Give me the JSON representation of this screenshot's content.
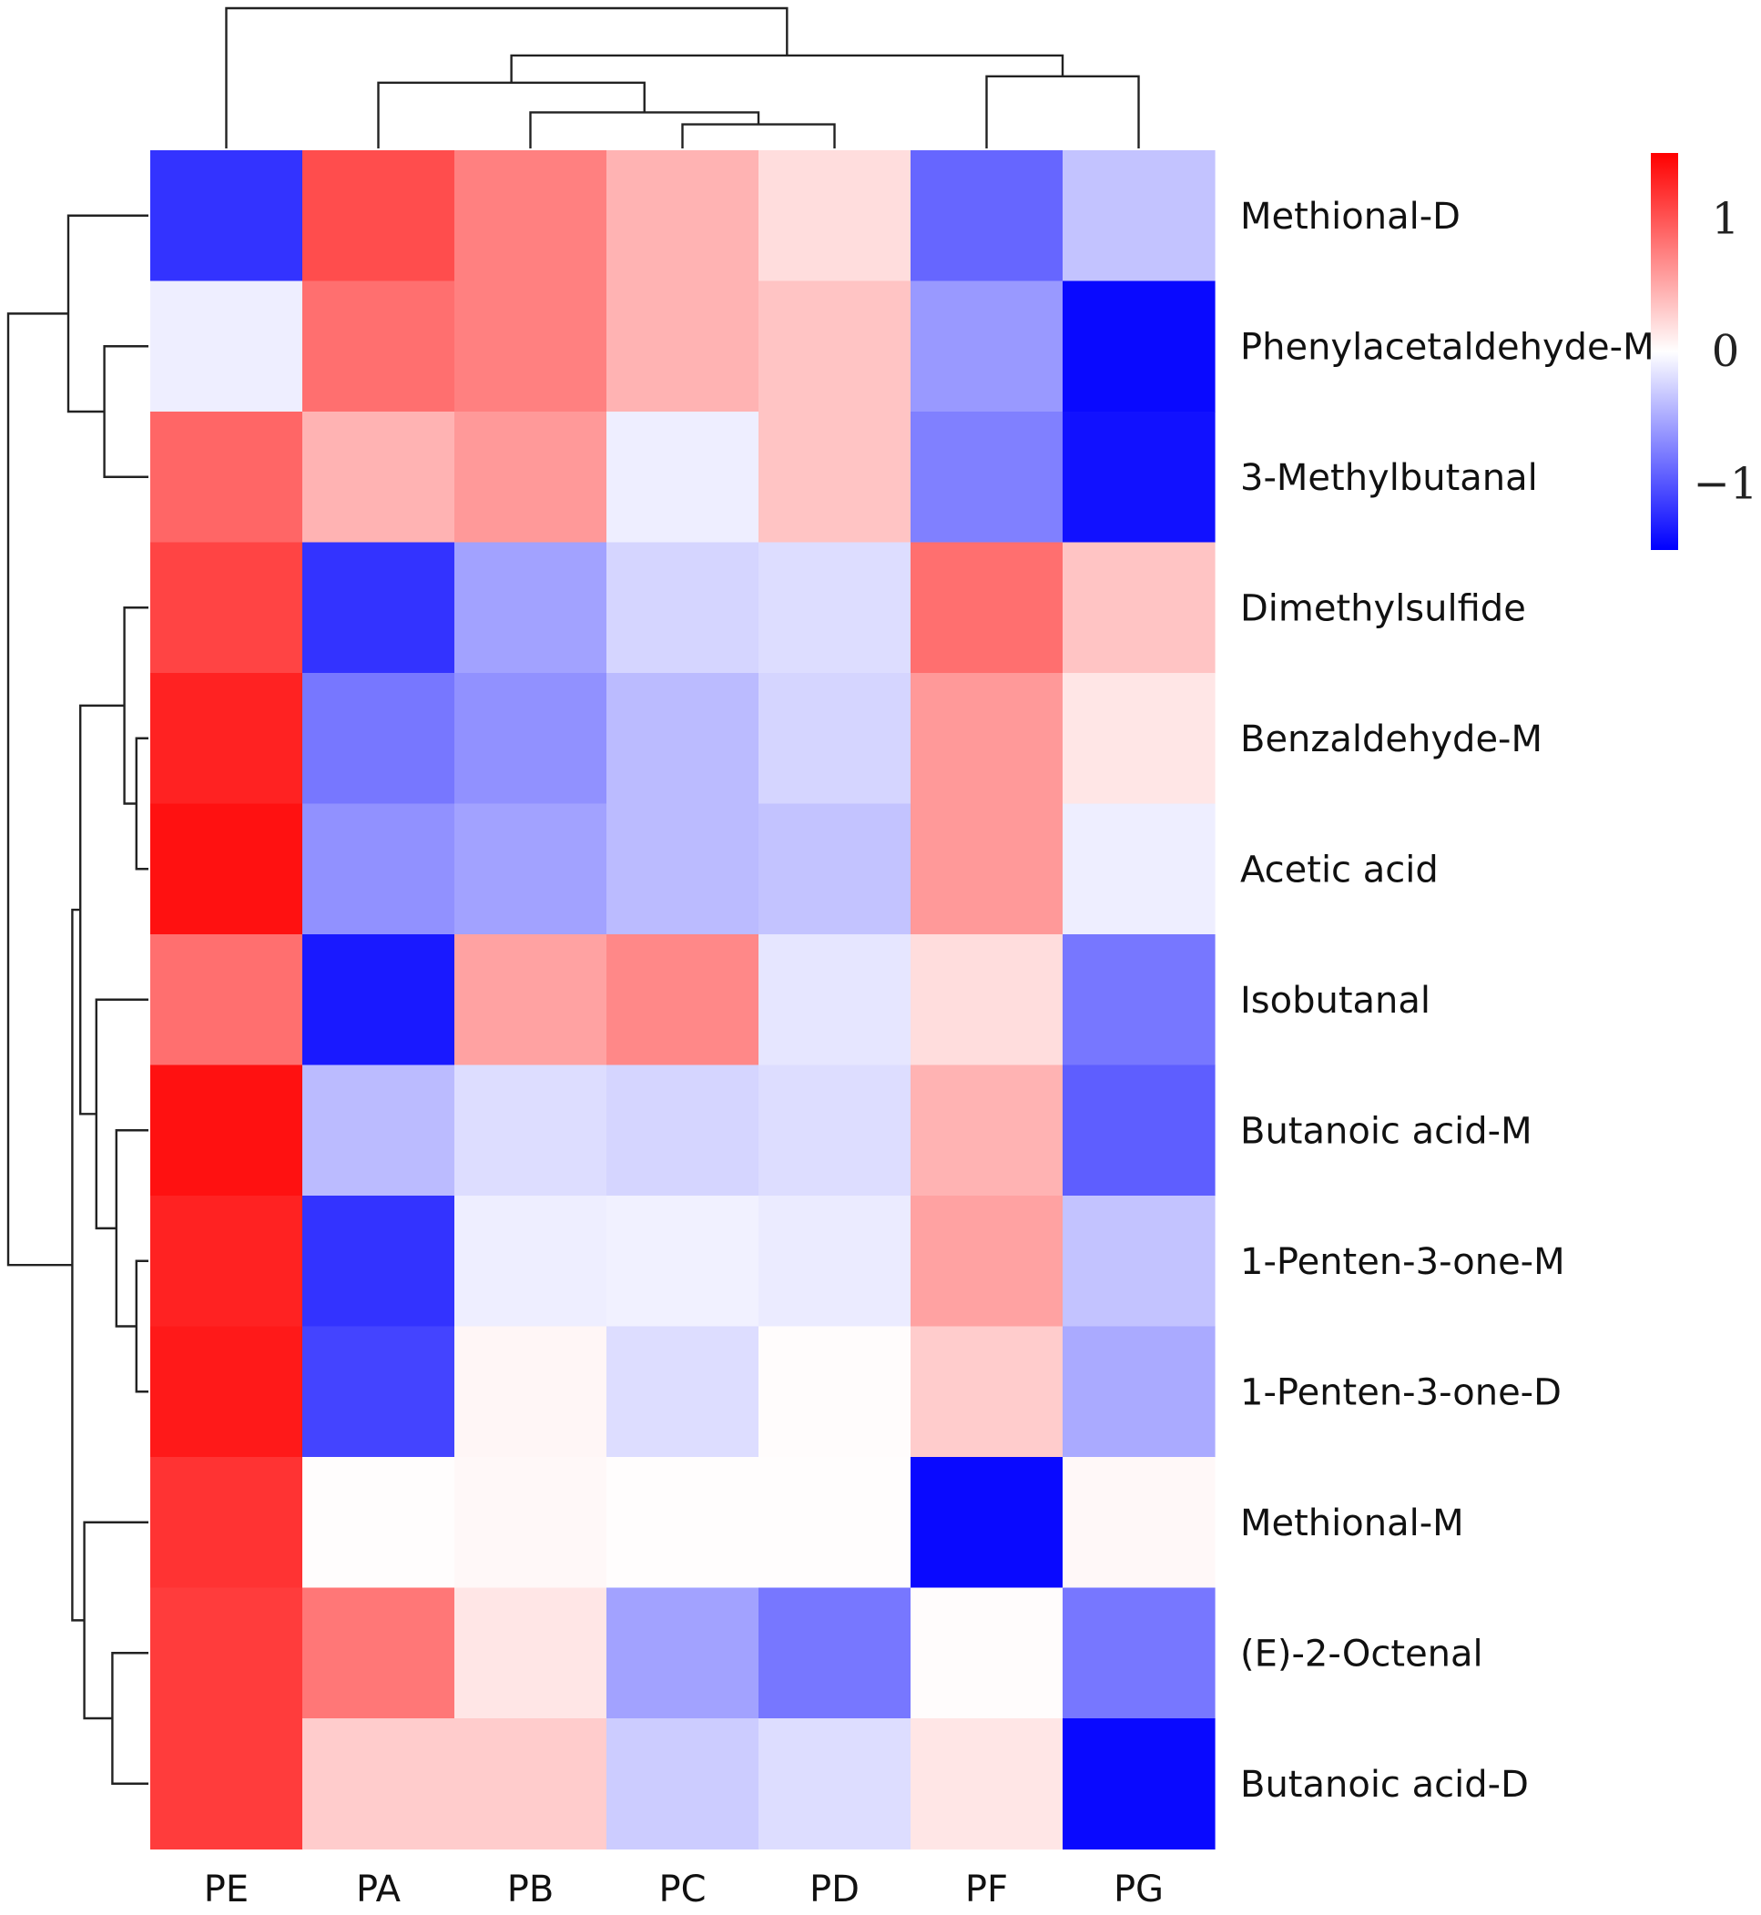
{
  "chart_data": {
    "type": "heatmap",
    "title": "",
    "columns": [
      "PE",
      "PA",
      "PB",
      "PC",
      "PD",
      "PF",
      "PG"
    ],
    "rows": [
      "Methional-D",
      "Phenylacetaldehyde-M",
      "3-Methylbutanal",
      "Dimethylsulfide",
      "Benzaldehyde-M",
      "Acetic acid",
      "Isobutanal",
      "Butanoic acid-M",
      "1-Penten-3-one-M",
      "1-Penten-3-one-D",
      "Methional-M",
      "(E)-2-Octenal",
      "Butanoic acid-D"
    ],
    "values": [
      [
        -1.2,
        1.05,
        0.75,
        0.45,
        0.2,
        -0.9,
        -0.35
      ],
      [
        -0.1,
        0.85,
        0.75,
        0.45,
        0.35,
        -0.6,
        -1.45
      ],
      [
        0.9,
        0.45,
        0.6,
        -0.1,
        0.35,
        -0.75,
        -1.4
      ],
      [
        1.1,
        -1.2,
        -0.55,
        -0.25,
        -0.2,
        0.85,
        0.35
      ],
      [
        1.3,
        -0.8,
        -0.65,
        -0.4,
        -0.25,
        0.6,
        0.15
      ],
      [
        1.4,
        -0.65,
        -0.55,
        -0.4,
        -0.35,
        0.6,
        -0.1
      ],
      [
        0.85,
        -1.35,
        0.55,
        0.7,
        -0.15,
        0.2,
        -0.8
      ],
      [
        1.4,
        -0.4,
        -0.2,
        -0.25,
        -0.2,
        0.45,
        -0.95
      ],
      [
        1.3,
        -1.2,
        -0.1,
        -0.08,
        -0.12,
        0.55,
        -0.35
      ],
      [
        1.35,
        -1.1,
        0.05,
        -0.2,
        0.02,
        0.3,
        -0.5
      ],
      [
        1.2,
        0.01,
        0.04,
        0.01,
        0.01,
        -1.45,
        0.04
      ],
      [
        1.15,
        0.8,
        0.15,
        -0.55,
        -0.8,
        0.02,
        -0.8
      ],
      [
        1.15,
        0.3,
        0.3,
        -0.3,
        -0.2,
        0.15,
        -1.45
      ]
    ],
    "colorscale": {
      "low": "#0000FF",
      "mid": "#FFFFFF",
      "high": "#FF0000",
      "range": [
        -1.5,
        1.5
      ],
      "ticks": [
        1,
        0,
        -1
      ],
      "tick_labels": [
        "1",
        "0",
        "−1"
      ]
    },
    "legend_position": "right",
    "column_dendrogram": [
      {
        "merge": [
          "PC",
          "PD"
        ],
        "height": 0.3
      },
      {
        "merge": [
          "PB",
          "PC+PD"
        ],
        "height": 0.45
      },
      {
        "merge": [
          "PA",
          "PB+PC+PD"
        ],
        "height": 0.82
      },
      {
        "merge": [
          "PF",
          "PG"
        ],
        "height": 0.9
      },
      {
        "merge": [
          "PA+PB+PC+PD",
          "PF+PG"
        ],
        "height": 1.16
      },
      {
        "merge": [
          "PE",
          "PA+PB+PC+PD+PF+PG"
        ],
        "height": 1.75
      }
    ],
    "row_dendrogram": [
      {
        "merge": [
          "Phenylacetaldehyde-M",
          "3-Methylbutanal"
        ],
        "height": 0.55
      },
      {
        "merge": [
          "Methional-D",
          "Phenylacetaldehyde-M+3-Methylbutanal"
        ],
        "height": 1.0
      },
      {
        "merge": [
          "Benzaldehyde-M",
          "Acetic acid"
        ],
        "height": 0.15
      },
      {
        "merge": [
          "Dimethylsulfide",
          "Benzaldehyde-M+Acetic acid"
        ],
        "height": 0.3
      },
      {
        "merge": [
          "1-Penten-3-one-M",
          "1-Penten-3-one-D"
        ],
        "height": 0.15
      },
      {
        "merge": [
          "Butanoic acid-M",
          "1-Penten-3-one-M+1-Penten-3-one-D"
        ],
        "height": 0.4
      },
      {
        "merge": [
          "Isobutanal",
          "Butanoic acid-M+1-Penten-3-ones"
        ],
        "height": 0.65
      },
      {
        "merge": [
          "Dimethylsulfide group",
          "Isobutanal group"
        ],
        "height": 0.85
      },
      {
        "merge": [
          "(E)-2-Octenal",
          "Butanoic acid-D"
        ],
        "height": 0.45
      },
      {
        "merge": [
          "Methional-M",
          "(E)-2-Octenal+Butanoic acid-D"
        ],
        "height": 0.8
      },
      {
        "merge": [
          "upper group",
          "Methional-M group"
        ],
        "height": 0.95
      },
      {
        "merge": [
          "top cluster",
          "bottom cluster"
        ],
        "height": 1.75
      }
    ]
  }
}
